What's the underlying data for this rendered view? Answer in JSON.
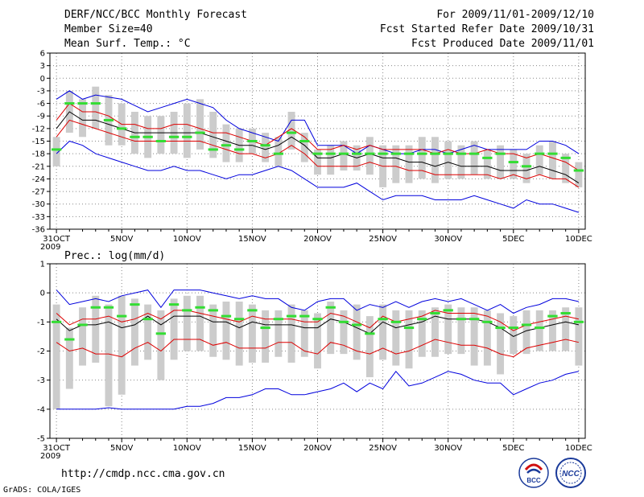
{
  "header": {
    "title": "DERF/NCC/BCC Monthly Forecast",
    "member_size": "Member Size=40",
    "variable": "Mean Surf. Temp.: °C",
    "period": "For 2009/11/01-2009/12/10",
    "started": "Fcst Started Refer Date 2009/10/31",
    "produced": "Fcst Produced Date 2009/11/01"
  },
  "footer": {
    "url": "http://cmdp.ncc.cma.gov.cn",
    "credit": "GrADS: COLA/IGES",
    "logo_bcc": "BCC",
    "logo_ncc": "NCC"
  },
  "colors": {
    "max": "#0000dd",
    "min": "#0000dd",
    "upper": "#dd0000",
    "lower": "#dd0000",
    "mean": "#000000",
    "obs": "#33dd33",
    "bar": "#cccccc"
  },
  "chart_data": [
    {
      "type": "line",
      "title": "Mean Surf. Temp.: °C",
      "ylim": [
        -36,
        6
      ],
      "yticks": [
        6,
        3,
        0,
        -3,
        -6,
        -9,
        -12,
        -15,
        -18,
        -21,
        -24,
        -27,
        -30,
        -33,
        -36
      ],
      "xticks": [
        {
          "day": 0,
          "label": "31OCT"
        },
        {
          "day": 5,
          "label": "5NOV"
        },
        {
          "day": 10,
          "label": "10NOV"
        },
        {
          "day": 15,
          "label": "15NOV"
        },
        {
          "day": 20,
          "label": "20NOV"
        },
        {
          "day": 25,
          "label": "25NOV"
        },
        {
          "day": 30,
          "label": "30NOV"
        },
        {
          "day": 35,
          "label": "5DEC"
        },
        {
          "day": 40,
          "label": "10DEC"
        }
      ],
      "year_label": "2009",
      "series": [
        {
          "name": "max",
          "values": [
            -5,
            -3,
            -5,
            -4,
            -4.5,
            -5,
            -6.5,
            -8,
            -7,
            -6,
            -5,
            -6,
            -7,
            -10,
            -12,
            -13,
            -14,
            -15,
            -10,
            -10,
            -16,
            -16,
            -16,
            -18,
            -16,
            -17,
            -18,
            -18,
            -17,
            -17,
            -18,
            -17,
            -16,
            -17,
            -17,
            -17,
            -17,
            -15,
            -15,
            -16,
            -18
          ]
        },
        {
          "name": "upper",
          "values": [
            -10,
            -6,
            -8,
            -8,
            -9,
            -11,
            -11,
            -12,
            -12,
            -11,
            -11,
            -12,
            -13,
            -13,
            -14,
            -15,
            -16,
            -14,
            -12,
            -14,
            -17,
            -17,
            -16,
            -17,
            -16,
            -17,
            -17,
            -17,
            -17,
            -18,
            -17,
            -18,
            -18,
            -17,
            -18,
            -18,
            -19,
            -18,
            -19,
            -20,
            -22
          ]
        },
        {
          "name": "mean",
          "values": [
            -12,
            -8,
            -10,
            -10,
            -11,
            -12,
            -13,
            -13,
            -13,
            -13,
            -13,
            -13,
            -14,
            -15,
            -16,
            -16,
            -17,
            -16,
            -14,
            -16,
            -19,
            -19,
            -18,
            -19,
            -18,
            -19,
            -19,
            -20,
            -20,
            -21,
            -20,
            -21,
            -21,
            -21,
            -22,
            -22,
            -22,
            -21,
            -22,
            -23,
            -25
          ]
        },
        {
          "name": "lower",
          "values": [
            -14,
            -10,
            -11,
            -12,
            -13,
            -14,
            -15,
            -15,
            -15,
            -15,
            -15,
            -15,
            -16,
            -17,
            -18,
            -18,
            -19,
            -18,
            -16,
            -18,
            -21,
            -21,
            -21,
            -21,
            -20,
            -21,
            -21,
            -22,
            -22,
            -23,
            -23,
            -23,
            -23,
            -23,
            -24,
            -23,
            -24,
            -23,
            -24,
            -24,
            -26
          ]
        },
        {
          "name": "min",
          "values": [
            -18,
            -15,
            -16,
            -18,
            -19,
            -20,
            -21,
            -22,
            -22,
            -21,
            -22,
            -22,
            -23,
            -24,
            -23,
            -23,
            -22,
            -21,
            -22,
            -24,
            -26,
            -26,
            -26,
            -25,
            -27,
            -29,
            -28,
            -28,
            -28,
            -29,
            -29,
            -29,
            -28,
            -29,
            -30,
            -31,
            -29,
            -30,
            -30,
            -31,
            -32
          ]
        },
        {
          "name": "obs",
          "values": [
            -17,
            -6,
            -6,
            -6,
            -10,
            -12,
            -14,
            -14,
            -15,
            -14,
            -14,
            -13,
            -17,
            -16,
            -17,
            -15,
            -16,
            -18,
            -13,
            -15,
            -18,
            -18,
            -18,
            -18,
            -18,
            -18,
            -18,
            -18,
            -18,
            -18,
            -18,
            -18,
            -18,
            -19,
            -18,
            -20,
            -21,
            -18,
            -18,
            -19,
            -22
          ]
        }
      ],
      "bars": {
        "lo": [
          -21,
          -13,
          -14,
          -12,
          -16,
          -16,
          -18,
          -19,
          -18,
          -18,
          -19,
          -17,
          -19,
          -20,
          -20,
          -18,
          -20,
          -21,
          -17,
          -20,
          -23,
          -23,
          -22,
          -22,
          -23,
          -26,
          -25,
          -25,
          -24,
          -25,
          -24,
          -24,
          -23,
          -24,
          -24,
          -24,
          -25,
          -23,
          -24,
          -25,
          -26
        ],
        "hi": [
          -14,
          -3,
          -5,
          -2,
          -4,
          -6,
          -8,
          -9,
          -9,
          -8,
          -6,
          -5,
          -8,
          -11,
          -12,
          -12,
          -13,
          -14,
          -8,
          -13,
          -17,
          -16,
          -15,
          -16,
          -14,
          -16,
          -16,
          -16,
          -14,
          -14,
          -15,
          -16,
          -15,
          -17,
          -16,
          -17,
          -18,
          -16,
          -15,
          -18,
          -20
        ]
      }
    },
    {
      "type": "line",
      "title": "Prec.: log(mm/d)",
      "ylim": [
        -5,
        1
      ],
      "yticks": [
        1,
        0,
        -1,
        -2,
        -3,
        -4,
        -5
      ],
      "xticks": [
        {
          "day": 0,
          "label": "31OCT"
        },
        {
          "day": 5,
          "label": "5NOV"
        },
        {
          "day": 10,
          "label": "10NOV"
        },
        {
          "day": 15,
          "label": "15NOV"
        },
        {
          "day": 20,
          "label": "20NOV"
        },
        {
          "day": 25,
          "label": "25NOV"
        },
        {
          "day": 30,
          "label": "30NOV"
        },
        {
          "day": 35,
          "label": "5DEC"
        },
        {
          "day": 40,
          "label": "10DEC"
        }
      ],
      "year_label": "2009",
      "series": [
        {
          "name": "max",
          "values": [
            0.1,
            -0.4,
            -0.3,
            -0.2,
            -0.3,
            -0.1,
            0,
            0.1,
            -0.5,
            0.1,
            0.1,
            0.1,
            0,
            -0.1,
            -0.2,
            -0.1,
            -0.2,
            -0.2,
            -0.5,
            -0.6,
            -0.3,
            -0.2,
            -0.2,
            -0.6,
            -0.4,
            -0.5,
            -0.3,
            -0.5,
            -0.3,
            -0.2,
            -0.3,
            -0.2,
            -0.4,
            -0.6,
            -0.4,
            -0.7,
            -0.5,
            -0.4,
            -0.2,
            -0.2,
            -0.3
          ]
        },
        {
          "name": "upper",
          "values": [
            -0.7,
            -1.1,
            -0.9,
            -0.9,
            -0.8,
            -1.0,
            -0.9,
            -0.7,
            -0.9,
            -0.6,
            -0.6,
            -0.7,
            -0.8,
            -0.9,
            -1.0,
            -0.8,
            -0.9,
            -0.9,
            -0.9,
            -1.0,
            -1.0,
            -0.7,
            -0.8,
            -1.0,
            -1.2,
            -0.8,
            -1.0,
            -0.9,
            -0.8,
            -0.6,
            -0.7,
            -0.7,
            -0.7,
            -0.8,
            -1.0,
            -1.3,
            -1.1,
            -1.0,
            -0.9,
            -0.8,
            -0.9
          ]
        },
        {
          "name": "mean",
          "values": [
            -0.9,
            -1.3,
            -1.1,
            -1.1,
            -1.0,
            -1.2,
            -1.1,
            -0.8,
            -1.1,
            -0.8,
            -0.8,
            -0.8,
            -1.0,
            -1.0,
            -1.2,
            -1.0,
            -1.1,
            -1.1,
            -1.1,
            -1.2,
            -1.2,
            -0.9,
            -1.0,
            -1.2,
            -1.4,
            -1.0,
            -1.2,
            -1.1,
            -1.0,
            -0.8,
            -0.9,
            -0.9,
            -0.9,
            -1.0,
            -1.2,
            -1.5,
            -1.3,
            -1.2,
            -1.1,
            -1.0,
            -1.1
          ]
        },
        {
          "name": "lower",
          "values": [
            -1.7,
            -2.0,
            -1.9,
            -2.1,
            -2.1,
            -2.2,
            -1.9,
            -1.7,
            -2.0,
            -1.6,
            -1.6,
            -1.6,
            -1.8,
            -1.7,
            -1.9,
            -1.9,
            -1.9,
            -1.7,
            -1.7,
            -2.0,
            -2.1,
            -1.7,
            -1.8,
            -2.0,
            -2.1,
            -1.9,
            -2.1,
            -2.0,
            -1.8,
            -1.6,
            -1.7,
            -1.8,
            -1.8,
            -1.9,
            -2.1,
            -2.2,
            -1.9,
            -1.8,
            -1.7,
            -1.6,
            -1.7
          ]
        },
        {
          "name": "min",
          "values": [
            -4.0,
            -4.0,
            -4.0,
            -4.0,
            -3.95,
            -4.0,
            -4.0,
            -4.0,
            -4.0,
            -4.0,
            -3.9,
            -3.9,
            -3.8,
            -3.6,
            -3.6,
            -3.5,
            -3.3,
            -3.3,
            -3.5,
            -3.5,
            -3.4,
            -3.3,
            -3.1,
            -3.4,
            -3.1,
            -3.3,
            -2.7,
            -3.2,
            -3.1,
            -2.9,
            -2.7,
            -2.8,
            -3.0,
            -3.1,
            -3.1,
            -3.5,
            -3.3,
            -3.1,
            -3.0,
            -2.8,
            -2.7
          ]
        },
        {
          "name": "obs",
          "values": [
            -1.0,
            -1.6,
            -1.1,
            -0.5,
            -0.5,
            -0.8,
            -0.4,
            -0.9,
            -1.4,
            -0.4,
            -0.6,
            -0.5,
            -0.6,
            -0.8,
            -0.9,
            -0.6,
            -1.2,
            -0.9,
            -0.8,
            -0.8,
            -0.9,
            -0.5,
            -1.0,
            -1.1,
            -1.4,
            -0.9,
            -1.0,
            -1.2,
            -0.9,
            -0.7,
            -0.6,
            -0.9,
            -0.9,
            -1.0,
            -1.2,
            -1.2,
            -1.1,
            -1.2,
            -0.8,
            -0.7,
            -1.0
          ]
        }
      ],
      "bars": {
        "lo": [
          -4.0,
          -3.3,
          -2.5,
          -2.4,
          -3.9,
          -3.5,
          -2.5,
          -2.3,
          -3.0,
          -2.3,
          -2.0,
          -2.0,
          -2.2,
          -2.3,
          -2.5,
          -2.4,
          -2.4,
          -2.2,
          -2.4,
          -2.2,
          -2.6,
          -2.1,
          -2.1,
          -2.3,
          -2.9,
          -2.3,
          -2.5,
          -2.6,
          -2.2,
          -2.2,
          -2.1,
          -2.1,
          -2.5,
          -2.5,
          -2.8,
          -2.1,
          -2.1,
          -2.0,
          -2.0,
          -2.0,
          -2.5
        ],
        "hi": [
          -0.4,
          -1.2,
          -0.5,
          -0.1,
          -0.4,
          -0.1,
          -0.2,
          -0.4,
          -0.6,
          -0.2,
          -0.1,
          -0.1,
          -0.4,
          -0.3,
          -0.3,
          -0.4,
          -0.6,
          -0.6,
          -0.4,
          -0.6,
          -0.7,
          -0.3,
          -0.6,
          -0.4,
          -0.8,
          -0.4,
          -0.6,
          -0.6,
          -0.6,
          -0.5,
          -0.4,
          -0.5,
          -0.5,
          -0.6,
          -0.7,
          -0.8,
          -0.6,
          -0.6,
          -0.6,
          -0.5,
          -0.5
        ]
      }
    }
  ]
}
